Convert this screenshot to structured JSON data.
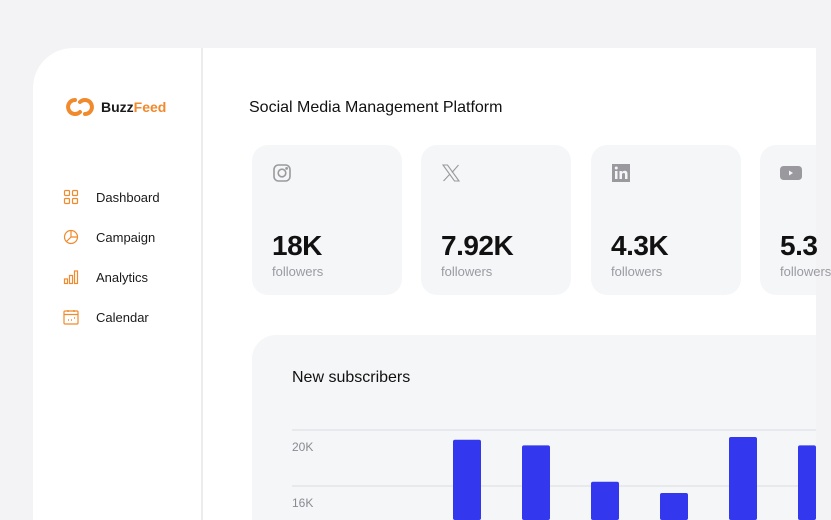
{
  "brand": {
    "part1": "Buzz",
    "part2": "Feed",
    "accent": "#f08a2c"
  },
  "nav": [
    {
      "label": "Dashboard",
      "icon": "grid-icon"
    },
    {
      "label": "Campaign",
      "icon": "pie-chart-icon"
    },
    {
      "label": "Analytics",
      "icon": "bar-chart-icon"
    },
    {
      "label": "Calendar",
      "icon": "calendar-icon"
    }
  ],
  "page_title": "Social Media Management Platform",
  "stats": [
    {
      "network": "instagram",
      "value": "18K",
      "label": "followers"
    },
    {
      "network": "x",
      "value": "7.92K",
      "label": "followers"
    },
    {
      "network": "linkedin",
      "value": "4.3K",
      "label": "followers"
    },
    {
      "network": "youtube",
      "value": "5.3",
      "label": "followers"
    }
  ],
  "chart_data": {
    "type": "bar",
    "title": "New subscribers",
    "yticks": [
      "20K",
      "16K"
    ],
    "ytick_values": [
      20000,
      16000
    ],
    "values": [
      19300,
      18900,
      16300,
      15500,
      19500,
      18900
    ],
    "color": "#3337ee"
  }
}
